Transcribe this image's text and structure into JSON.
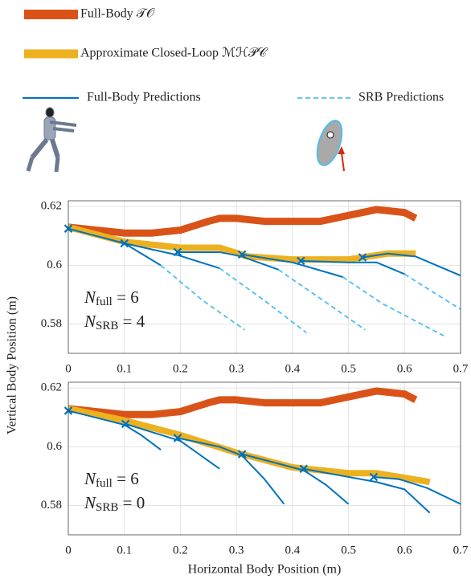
{
  "chart_data": [
    {
      "type": "line",
      "ylabel": "Vertical Body Position (m)",
      "xlim": [
        0,
        0.7
      ],
      "ylim": [
        0.57,
        0.622
      ],
      "xticks": [
        0,
        0.1,
        0.2,
        0.3,
        0.4,
        0.5,
        0.6,
        0.7
      ],
      "yticks": [
        0.58,
        0.6,
        0.62
      ],
      "grid": true,
      "annotation": [
        {
          "main": "N",
          "sub": "full",
          "tail": " = 6"
        },
        {
          "main": "N",
          "sub": "SRB",
          "tail": " = 4"
        }
      ],
      "series": [
        {
          "name": "Full-Body 𝒯𝒪",
          "color": "#d95319",
          "x": [
            0,
            0.05,
            0.1,
            0.15,
            0.2,
            0.25,
            0.27,
            0.3,
            0.35,
            0.4,
            0.45,
            0.5,
            0.55,
            0.6,
            0.62
          ],
          "values": [
            0.613,
            0.612,
            0.611,
            0.611,
            0.612,
            0.615,
            0.616,
            0.616,
            0.615,
            0.615,
            0.615,
            0.617,
            0.619,
            0.618,
            0.616
          ]
        },
        {
          "name": "Approximate Closed-Loop ℳℋ𝒫𝒞",
          "color": "#edb120",
          "x": [
            0,
            0.1,
            0.2,
            0.27,
            0.32,
            0.4,
            0.5,
            0.57,
            0.62
          ],
          "values": [
            0.613,
            0.608,
            0.606,
            0.606,
            0.603,
            0.602,
            0.602,
            0.604,
            0.604
          ]
        },
        {
          "name": "Full-Body Predictions",
          "color": "#0072bd",
          "segments": [
            {
              "x": [
                0,
                0.1,
                0.165
              ],
              "values": [
                0.6125,
                0.6075,
                0.6
              ]
            },
            {
              "x": [
                0.1,
                0.195,
                0.27
              ],
              "values": [
                0.6075,
                0.6035,
                0.599
              ]
            },
            {
              "x": [
                0.195,
                0.27,
                0.31,
                0.375
              ],
              "values": [
                0.6045,
                0.6045,
                0.603,
                0.5985
              ]
            },
            {
              "x": [
                0.31,
                0.4,
                0.49
              ],
              "values": [
                0.6037,
                0.601,
                0.596
              ]
            },
            {
              "x": [
                0.415,
                0.5,
                0.55,
                0.6
              ],
              "values": [
                0.6015,
                0.601,
                0.601,
                0.597
              ]
            },
            {
              "x": [
                0.525,
                0.57,
                0.62,
                0.7
              ],
              "values": [
                0.6027,
                0.604,
                0.603,
                0.5965
              ]
            }
          ],
          "knots": {
            "x": [
              0,
              0.1,
              0.195,
              0.31,
              0.415,
              0.525
            ],
            "values": [
              0.6125,
              0.6075,
              0.6045,
              0.6037,
              0.6015,
              0.6027
            ]
          }
        },
        {
          "name": "SRB Predictions",
          "color": "#4dbeee",
          "segments": [
            {
              "x": [
                0.165,
                0.24,
                0.315
              ],
              "values": [
                0.6,
                0.588,
                0.578
              ]
            },
            {
              "x": [
                0.27,
                0.35,
                0.425
              ],
              "values": [
                0.599,
                0.588,
                0.577
              ]
            },
            {
              "x": [
                0.375,
                0.455,
                0.53
              ],
              "values": [
                0.5985,
                0.588,
                0.578
              ]
            },
            {
              "x": [
                0.49,
                0.56,
                0.67
              ],
              "values": [
                0.596,
                0.587,
                0.576
              ]
            },
            {
              "x": [
                0.6,
                0.7
              ],
              "values": [
                0.597,
                0.585
              ]
            }
          ]
        }
      ]
    },
    {
      "type": "line",
      "xlabel": "Horizontal Body Position (m)",
      "xlim": [
        0,
        0.7
      ],
      "ylim": [
        0.57,
        0.622
      ],
      "xticks": [
        0,
        0.1,
        0.2,
        0.3,
        0.4,
        0.5,
        0.6,
        0.7
      ],
      "yticks": [
        0.58,
        0.6,
        0.62
      ],
      "grid": true,
      "annotation": [
        {
          "main": "N",
          "sub": "full",
          "tail": " = 6"
        },
        {
          "main": "N",
          "sub": "SRB",
          "tail": " = 0"
        }
      ],
      "series": [
        {
          "color": "#d95319",
          "x": [
            0,
            0.05,
            0.1,
            0.15,
            0.2,
            0.25,
            0.27,
            0.3,
            0.35,
            0.4,
            0.45,
            0.5,
            0.55,
            0.6,
            0.62
          ],
          "values": [
            0.613,
            0.612,
            0.611,
            0.611,
            0.612,
            0.615,
            0.616,
            0.616,
            0.615,
            0.615,
            0.615,
            0.617,
            0.619,
            0.618,
            0.616
          ]
        },
        {
          "color": "#edb120",
          "x": [
            0,
            0.1,
            0.2,
            0.3,
            0.4,
            0.5,
            0.55,
            0.645
          ],
          "values": [
            0.613,
            0.609,
            0.604,
            0.598,
            0.593,
            0.591,
            0.591,
            0.588
          ]
        },
        {
          "color": "#0072bd",
          "segments": [
            {
              "x": [
                0,
                0.1,
                0.13,
                0.165
              ],
              "values": [
                0.6123,
                0.6075,
                0.604,
                0.599
              ]
            },
            {
              "x": [
                0.102,
                0.2,
                0.27
              ],
              "values": [
                0.6078,
                0.602,
                0.5925
              ]
            },
            {
              "x": [
                0.195,
                0.27,
                0.31,
                0.35,
                0.385
              ],
              "values": [
                0.603,
                0.6,
                0.597,
                0.589,
                0.5805
              ]
            },
            {
              "x": [
                0.31,
                0.42,
                0.46,
                0.5
              ],
              "values": [
                0.5975,
                0.592,
                0.587,
                0.5805
              ]
            },
            {
              "x": [
                0.42,
                0.55,
                0.6,
                0.645
              ],
              "values": [
                0.5925,
                0.588,
                0.5855,
                0.5775
              ]
            },
            {
              "x": [
                0.545,
                0.59,
                0.64,
                0.7
              ],
              "values": [
                0.5897,
                0.589,
                0.586,
                0.5805
              ]
            }
          ],
          "knots": {
            "x": [
              0,
              0.102,
              0.195,
              0.31,
              0.42,
              0.545
            ],
            "values": [
              0.6123,
              0.6078,
              0.603,
              0.5975,
              0.5925,
              0.5897
            ]
          }
        }
      ]
    }
  ]
}
